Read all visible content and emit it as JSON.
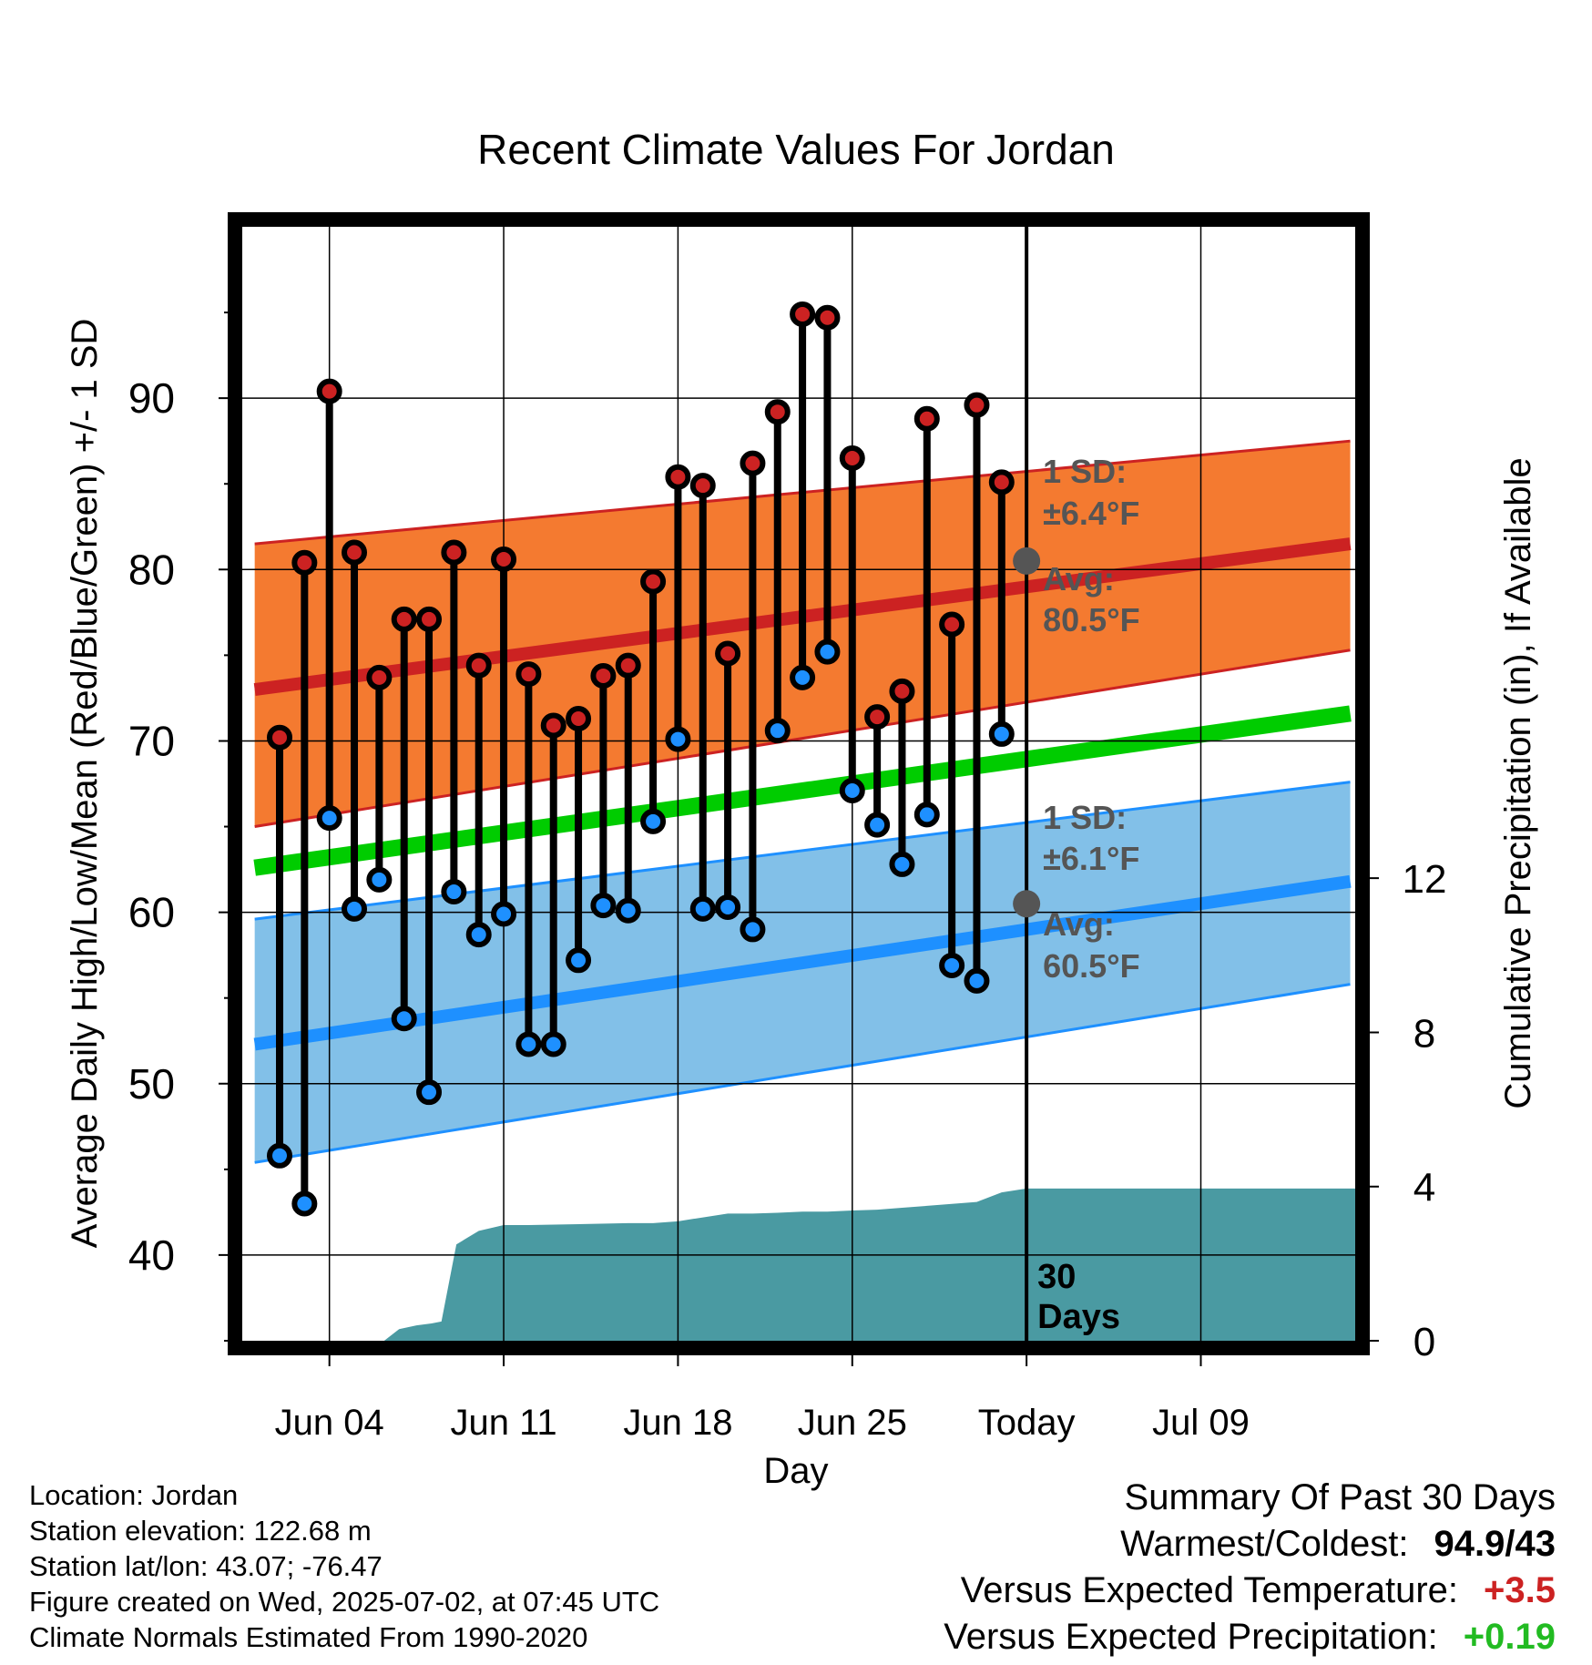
{
  "chart_data": {
    "type": "line",
    "title": "Recent Climate Values For Jordan",
    "xlabel": "Day",
    "ylabel": "Average Daily High/Low/Mean (Red/Blue/Green) +/- 1 SD",
    "y2label": "Cumulative Precipitation (in), If Available",
    "ylim": [
      35,
      100
    ],
    "y2lim": [
      0,
      28.9
    ],
    "xlim_days": [
      -31.5,
      13.2
    ],
    "x_ticks": [
      {
        "day": -28,
        "label": "Jun 04"
      },
      {
        "day": -21,
        "label": "Jun 11"
      },
      {
        "day": -14,
        "label": "Jun 18"
      },
      {
        "day": -7,
        "label": "Jun 25"
      },
      {
        "day": 0,
        "label": "Today"
      },
      {
        "day": 7,
        "label": "Jul 09"
      }
    ],
    "y_ticks": [
      40,
      50,
      60,
      70,
      80,
      90
    ],
    "y2_ticks": [
      0,
      4,
      8,
      12
    ],
    "grid": true,
    "today_marker_label": "30\nDays",
    "colors": {
      "high": "#cc2222",
      "low": "#1e90ff",
      "mean": "#00cc00",
      "high_band": "#f47a30",
      "low_band": "#82c0e8",
      "precip": "#4a9aa2",
      "avg_dot": "#555555",
      "annotation": "#555555"
    },
    "normals": {
      "days": [
        -31,
        13
      ],
      "high_avg": [
        73.0,
        81.5
      ],
      "high_upper": [
        81.5,
        87.5
      ],
      "high_lower": [
        65.0,
        75.3
      ],
      "low_avg": [
        52.3,
        61.8
      ],
      "low_upper": [
        59.6,
        67.6
      ],
      "low_lower": [
        45.4,
        55.8
      ],
      "mean_avg": [
        62.6,
        71.6
      ],
      "high_sd_label": "1 SD:",
      "high_sd_value": "±6.4°F",
      "high_avg_label": "Avg:",
      "high_avg_value": "80.5°F",
      "low_sd_label": "1 SD:",
      "low_sd_value": "±6.1°F",
      "low_avg_label": "Avg:",
      "low_avg_value": "60.5°F",
      "today_high_avg": 80.5,
      "today_low_avg": 60.5
    },
    "series": [
      {
        "name": "High",
        "values": [
          70.2,
          80.4,
          90.4,
          81.0,
          73.7,
          77.1,
          77.1,
          81.0,
          74.4,
          80.6,
          73.9,
          70.9,
          71.3,
          73.8,
          74.4,
          79.3,
          85.4,
          84.9,
          75.1,
          86.2,
          89.2,
          94.9,
          94.7,
          86.5,
          71.4,
          72.9,
          88.8,
          76.8,
          89.6,
          85.1
        ]
      },
      {
        "name": "Low",
        "values": [
          45.8,
          43.0,
          65.5,
          60.2,
          61.9,
          53.8,
          49.5,
          61.2,
          58.7,
          59.9,
          52.3,
          52.3,
          57.2,
          60.4,
          60.1,
          65.3,
          70.1,
          60.2,
          60.3,
          59.0,
          70.6,
          73.7,
          75.2,
          67.1,
          65.1,
          62.8,
          65.7,
          56.9,
          56.0,
          70.4
        ]
      }
    ],
    "obs_days": [
      -30,
      -29,
      -28,
      -27,
      -26,
      -25,
      -24,
      -23,
      -22,
      -21,
      -20,
      -19,
      -18,
      -17,
      -16,
      -15,
      -14,
      -13,
      -12,
      -11,
      -10,
      -9,
      -8,
      -7,
      -6,
      -5,
      -4,
      -3,
      -2,
      -1
    ],
    "precip": {
      "days": [
        -31.5,
        -25.8,
        -25.2,
        -24.5,
        -23.9,
        -23.5,
        -22.9,
        -22.0,
        -21.0,
        -20.0,
        -16.0,
        -15.0,
        -14.0,
        -13.0,
        -12.0,
        -11.0,
        -10.0,
        -9.0,
        -8.0,
        -7.0,
        -6.0,
        -5.0,
        -4.0,
        -3.0,
        -2.0,
        -1.0,
        0,
        13.2
      ],
      "values": [
        0,
        0,
        0.3,
        0.4,
        0.45,
        0.5,
        2.5,
        2.85,
        3.0,
        3.0,
        3.05,
        3.05,
        3.1,
        3.2,
        3.3,
        3.3,
        3.32,
        3.35,
        3.35,
        3.38,
        3.4,
        3.45,
        3.5,
        3.55,
        3.6,
        3.85,
        3.95,
        3.95
      ]
    }
  },
  "footer": {
    "location": "Location: Jordan",
    "elevation": "Station elevation: 122.68 m",
    "latlon": "Station lat/lon: 43.07; -76.47",
    "created": "Figure created on Wed, 2025-07-02, at 07:45 UTC",
    "normals": "Climate Normals Estimated From 1990-2020"
  },
  "summary": {
    "title": "Summary Of Past 30 Days",
    "warmest_label": "Warmest/Coldest:",
    "warmest_value": "94.9/43",
    "temp_label": "Versus Expected Temperature:",
    "temp_value": "+3.5",
    "temp_color": "#cc2222",
    "precip_label": "Versus Expected Precipitation:",
    "precip_value": "+0.19",
    "precip_color": "#22bb22"
  }
}
